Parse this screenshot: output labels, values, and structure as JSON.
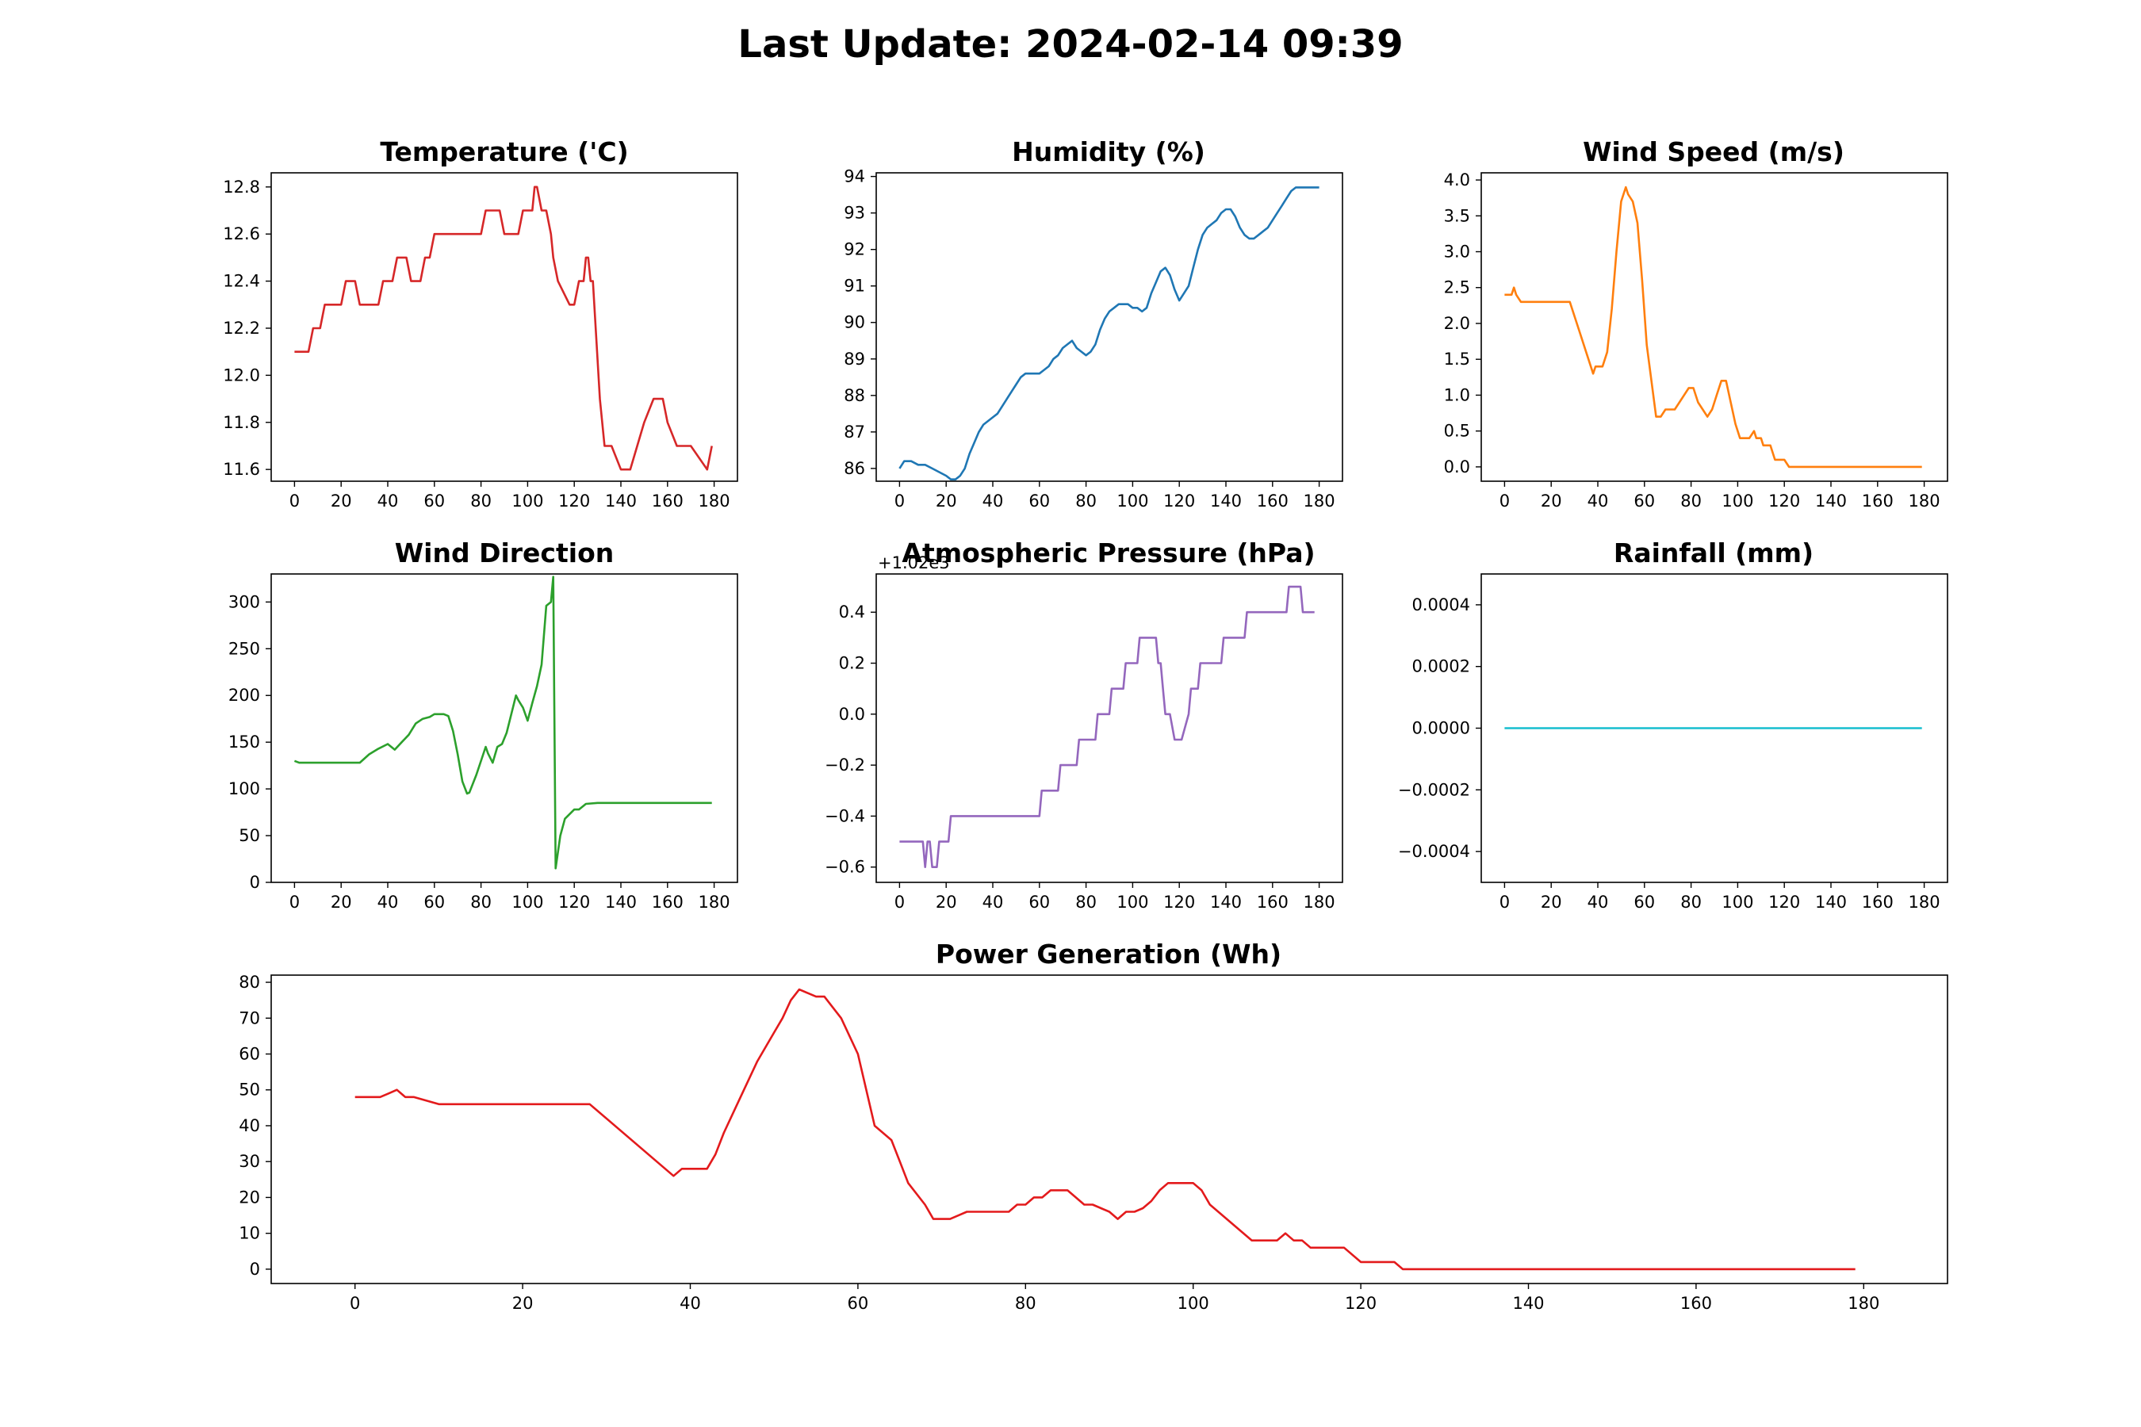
{
  "page": {
    "title": "Last Update: 2024-02-14 09:39"
  },
  "colors": {
    "temperature": "#d62728",
    "humidity": "#1f77b4",
    "wind_speed": "#ff7f0e",
    "wind_direction": "#2ca02c",
    "pressure": "#9467bd",
    "rainfall": "#17becf",
    "power": "#e31a1c",
    "axes": "#000000",
    "background": "#ffffff"
  },
  "chart_data": [
    {
      "id": "temperature",
      "type": "line",
      "title": "Temperature ('C)",
      "xlabel": "",
      "ylabel": "",
      "xlim": [
        -10,
        190
      ],
      "ylim": [
        11.55,
        12.86
      ],
      "xticks": [
        0,
        20,
        40,
        60,
        80,
        100,
        120,
        140,
        160,
        180
      ],
      "yticks": [
        11.6,
        11.8,
        12.0,
        12.2,
        12.4,
        12.6,
        12.8
      ],
      "ytick_labels": [
        "11.6",
        "11.8",
        "12.0",
        "12.2",
        "12.4",
        "12.6",
        "12.8"
      ],
      "grid": false,
      "step": true,
      "series": [
        {
          "x": [
            0,
            6,
            8,
            11,
            13,
            20,
            22,
            26,
            28,
            36,
            38,
            42,
            44,
            48,
            50,
            54,
            56,
            58,
            60,
            80,
            82,
            88,
            90,
            96,
            98,
            102,
            103,
            104,
            106,
            108,
            110,
            111,
            113,
            118,
            120,
            122,
            124,
            125,
            126,
            127,
            128,
            131,
            133,
            136,
            140,
            144,
            147,
            150,
            154,
            158,
            160,
            164,
            170,
            177,
            179
          ],
          "y": [
            12.1,
            12.1,
            12.2,
            12.2,
            12.3,
            12.3,
            12.4,
            12.4,
            12.3,
            12.3,
            12.4,
            12.4,
            12.5,
            12.5,
            12.4,
            12.4,
            12.5,
            12.5,
            12.6,
            12.6,
            12.7,
            12.7,
            12.6,
            12.6,
            12.7,
            12.7,
            12.8,
            12.8,
            12.7,
            12.7,
            12.6,
            12.5,
            12.4,
            12.3,
            12.3,
            12.4,
            12.4,
            12.5,
            12.5,
            12.4,
            12.4,
            11.9,
            11.7,
            11.7,
            11.6,
            11.6,
            11.7,
            11.8,
            11.9,
            11.9,
            11.8,
            11.7,
            11.7,
            11.6,
            11.7
          ]
        }
      ]
    },
    {
      "id": "humidity",
      "type": "line",
      "title": "Humidity (%)",
      "xlabel": "",
      "ylabel": "",
      "xlim": [
        -10,
        190
      ],
      "ylim": [
        85.65,
        94.1
      ],
      "xticks": [
        0,
        20,
        40,
        60,
        80,
        100,
        120,
        140,
        160,
        180
      ],
      "yticks": [
        86,
        87,
        88,
        89,
        90,
        91,
        92,
        93,
        94
      ],
      "ytick_labels": [
        "86",
        "87",
        "88",
        "89",
        "90",
        "91",
        "92",
        "93",
        "94"
      ],
      "grid": false,
      "series": [
        {
          "x": [
            0,
            2,
            5,
            8,
            11,
            14,
            17,
            20,
            22,
            24,
            26,
            28,
            30,
            32,
            34,
            36,
            38,
            40,
            42,
            44,
            46,
            48,
            50,
            52,
            54,
            56,
            58,
            60,
            62,
            64,
            66,
            68,
            70,
            72,
            74,
            76,
            78,
            80,
            82,
            84,
            86,
            88,
            90,
            92,
            94,
            96,
            98,
            100,
            102,
            104,
            106,
            108,
            110,
            112,
            114,
            116,
            118,
            120,
            122,
            124,
            126,
            128,
            130,
            132,
            134,
            136,
            138,
            140,
            142,
            144,
            146,
            148,
            150,
            152,
            154,
            156,
            158,
            160,
            162,
            164,
            166,
            168,
            170,
            172,
            174,
            176,
            178,
            180
          ],
          "y": [
            86.0,
            86.2,
            86.2,
            86.1,
            86.1,
            86.0,
            85.9,
            85.8,
            85.7,
            85.7,
            85.8,
            86.0,
            86.4,
            86.7,
            87.0,
            87.2,
            87.3,
            87.4,
            87.5,
            87.7,
            87.9,
            88.1,
            88.3,
            88.5,
            88.6,
            88.6,
            88.6,
            88.6,
            88.7,
            88.8,
            89.0,
            89.1,
            89.3,
            89.4,
            89.5,
            89.3,
            89.2,
            89.1,
            89.2,
            89.4,
            89.8,
            90.1,
            90.3,
            90.4,
            90.5,
            90.5,
            90.5,
            90.4,
            90.4,
            90.3,
            90.4,
            90.8,
            91.1,
            91.4,
            91.5,
            91.3,
            90.9,
            90.6,
            90.8,
            91.0,
            91.5,
            92.0,
            92.4,
            92.6,
            92.7,
            92.8,
            93.0,
            93.1,
            93.1,
            92.9,
            92.6,
            92.4,
            92.3,
            92.3,
            92.4,
            92.5,
            92.6,
            92.8,
            93.0,
            93.2,
            93.4,
            93.6,
            93.7,
            93.7,
            93.7,
            93.7,
            93.7,
            93.7
          ]
        }
      ]
    },
    {
      "id": "wind_speed",
      "type": "line",
      "title": "Wind Speed (m/s)",
      "xlabel": "",
      "ylabel": "",
      "xlim": [
        -10,
        190
      ],
      "ylim": [
        -0.2,
        4.1
      ],
      "xticks": [
        0,
        20,
        40,
        60,
        80,
        100,
        120,
        140,
        160,
        180
      ],
      "yticks": [
        0.0,
        0.5,
        1.0,
        1.5,
        2.0,
        2.5,
        3.0,
        3.5,
        4.0
      ],
      "ytick_labels": [
        "0.0",
        "0.5",
        "1.0",
        "1.5",
        "2.0",
        "2.5",
        "3.0",
        "3.5",
        "4.0"
      ],
      "grid": false,
      "series": [
        {
          "x": [
            0,
            3,
            4,
            5,
            7,
            10,
            15,
            20,
            28,
            32,
            35,
            38,
            39,
            40,
            42,
            44,
            46,
            48,
            50,
            52,
            53,
            55,
            57,
            59,
            61,
            63,
            65,
            67,
            69,
            71,
            73,
            75,
            77,
            79,
            81,
            83,
            85,
            87,
            89,
            90,
            91,
            93,
            95,
            97,
            99,
            101,
            103,
            105,
            107,
            108,
            110,
            111,
            112,
            114,
            116,
            118,
            120,
            122,
            124,
            125,
            127,
            130,
            140,
            150,
            160,
            170,
            179
          ],
          "y": [
            2.4,
            2.4,
            2.5,
            2.4,
            2.3,
            2.3,
            2.3,
            2.3,
            2.3,
            1.9,
            1.6,
            1.3,
            1.4,
            1.4,
            1.4,
            1.6,
            2.2,
            3.0,
            3.7,
            3.9,
            3.8,
            3.7,
            3.4,
            2.6,
            1.7,
            1.2,
            0.7,
            0.7,
            0.8,
            0.8,
            0.8,
            0.9,
            1.0,
            1.1,
            1.1,
            0.9,
            0.8,
            0.7,
            0.8,
            0.9,
            1.0,
            1.2,
            1.2,
            0.9,
            0.6,
            0.4,
            0.4,
            0.4,
            0.5,
            0.4,
            0.4,
            0.3,
            0.3,
            0.3,
            0.1,
            0.1,
            0.1,
            0.0,
            0.0,
            0.0,
            0.0,
            0.0,
            0.0,
            0.0,
            0.0,
            0.0,
            0.0
          ]
        }
      ]
    },
    {
      "id": "wind_direction",
      "type": "line",
      "title": "Wind Direction",
      "xlabel": "",
      "ylabel": "",
      "xlim": [
        -10,
        190
      ],
      "ylim": [
        0,
        330
      ],
      "xticks": [
        0,
        20,
        40,
        60,
        80,
        100,
        120,
        140,
        160,
        180
      ],
      "yticks": [
        0,
        50,
        100,
        150,
        200,
        250,
        300
      ],
      "ytick_labels": [
        "0",
        "50",
        "100",
        "150",
        "200",
        "250",
        "300"
      ],
      "grid": false,
      "series": [
        {
          "x": [
            0,
            2,
            28,
            32,
            36,
            40,
            43,
            46,
            49,
            52,
            55,
            58,
            60,
            62,
            64,
            66,
            68,
            70,
            72,
            74,
            75,
            78,
            82,
            83,
            85,
            87,
            89,
            91,
            93,
            95,
            96,
            98,
            100,
            102,
            104,
            106,
            108,
            110,
            111,
            112,
            114,
            116,
            120,
            122,
            125,
            130,
            140,
            150,
            160,
            170,
            179
          ],
          "y": [
            130,
            128,
            128,
            137,
            143,
            148,
            142,
            150,
            158,
            170,
            175,
            177,
            180,
            180,
            180,
            178,
            162,
            137,
            108,
            95,
            96,
            115,
            145,
            138,
            128,
            145,
            148,
            160,
            180,
            200,
            195,
            187,
            173,
            192,
            210,
            233,
            296,
            300,
            327,
            15,
            50,
            68,
            78,
            78,
            84,
            85,
            85,
            85,
            85,
            85,
            85
          ]
        }
      ]
    },
    {
      "id": "pressure",
      "type": "line",
      "title": "Atmospheric Pressure (hPa)",
      "offset_label": "+1.02e3",
      "xlabel": "",
      "ylabel": "",
      "xlim": [
        -10,
        190
      ],
      "ylim": [
        -0.66,
        0.55
      ],
      "xticks": [
        0,
        20,
        40,
        60,
        80,
        100,
        120,
        140,
        160,
        180
      ],
      "yticks": [
        -0.6,
        -0.4,
        -0.2,
        0.0,
        0.2,
        0.4
      ],
      "ytick_labels": [
        "−0.6",
        "−0.4",
        "−0.2",
        "0.0",
        "0.2",
        "0.4"
      ],
      "grid": false,
      "series": [
        {
          "x": [
            0,
            10,
            11,
            12,
            13,
            14,
            16,
            17,
            20,
            21,
            22,
            60,
            61,
            68,
            69,
            76,
            77,
            84,
            85,
            90,
            91,
            96,
            97,
            102,
            103,
            110,
            111,
            112,
            113,
            114,
            116,
            118,
            120,
            121,
            124,
            125,
            128,
            129,
            130,
            131,
            138,
            139,
            148,
            149,
            166,
            167,
            172,
            173,
            178
          ],
          "y": [
            -0.5,
            -0.5,
            -0.6,
            -0.5,
            -0.5,
            -0.6,
            -0.6,
            -0.5,
            -0.5,
            -0.5,
            -0.4,
            -0.4,
            -0.3,
            -0.3,
            -0.2,
            -0.2,
            -0.1,
            -0.1,
            0.0,
            0.0,
            0.1,
            0.1,
            0.2,
            0.2,
            0.3,
            0.3,
            0.2,
            0.2,
            0.1,
            0.0,
            -0.0,
            -0.1,
            -0.1,
            -0.1,
            0.0,
            0.1,
            0.1,
            0.2,
            0.2,
            0.2,
            0.2,
            0.3,
            0.3,
            0.4,
            0.4,
            0.5,
            0.5,
            0.4,
            0.4
          ]
        }
      ]
    },
    {
      "id": "rainfall",
      "type": "line",
      "title": "Rainfall (mm)",
      "xlabel": "",
      "ylabel": "",
      "xlim": [
        -10,
        190
      ],
      "ylim": [
        -0.0005,
        0.0005
      ],
      "xticks": [
        0,
        20,
        40,
        60,
        80,
        100,
        120,
        140,
        160,
        180
      ],
      "yticks": [
        -0.0004,
        -0.0002,
        0.0,
        0.0002,
        0.0004
      ],
      "ytick_labels": [
        "−0.0004",
        "−0.0002",
        "0.0000",
        "0.0002",
        "0.0004"
      ],
      "grid": false,
      "series": [
        {
          "x": [
            0,
            179
          ],
          "y": [
            0,
            0
          ]
        }
      ]
    },
    {
      "id": "power",
      "type": "line",
      "title": "Power Generation (Wh)",
      "xlabel": "",
      "ylabel": "",
      "xlim": [
        -10,
        190
      ],
      "ylim": [
        -4,
        82
      ],
      "xticks": [
        0,
        20,
        40,
        60,
        80,
        100,
        120,
        140,
        160,
        180
      ],
      "yticks": [
        0,
        10,
        20,
        30,
        40,
        50,
        60,
        70,
        80
      ],
      "ytick_labels": [
        "0",
        "10",
        "20",
        "30",
        "40",
        "50",
        "60",
        "70",
        "80"
      ],
      "grid": false,
      "series": [
        {
          "x": [
            0,
            3,
            4,
            5,
            6,
            7,
            10,
            20,
            28,
            38,
            39,
            40,
            42,
            43,
            44,
            46,
            48,
            50,
            51,
            52,
            53,
            54,
            55,
            56,
            58,
            60,
            62,
            64,
            65,
            66,
            68,
            69,
            70,
            71,
            72,
            73,
            74,
            75,
            76,
            78,
            79,
            80,
            81,
            82,
            83,
            84,
            85,
            86,
            87,
            88,
            89,
            90,
            91,
            92,
            93,
            94,
            95,
            96,
            97,
            98,
            99,
            100,
            101,
            102,
            104,
            107,
            109,
            110,
            111,
            112,
            113,
            114,
            118,
            120,
            124,
            125,
            130,
            140,
            150,
            160,
            170,
            179
          ],
          "y": [
            48,
            48,
            49,
            50,
            48,
            48,
            46,
            46,
            46,
            26,
            28,
            28,
            28,
            32,
            38,
            48,
            58,
            66,
            70,
            75,
            78,
            77,
            76,
            76,
            70,
            60,
            40,
            36,
            30,
            24,
            18,
            14,
            14,
            14,
            15,
            16,
            16,
            16,
            16,
            16,
            18,
            18,
            20,
            20,
            22,
            22,
            22,
            20,
            18,
            18,
            17,
            16,
            14,
            16,
            16,
            17,
            19,
            22,
            24,
            24,
            24,
            24,
            22,
            18,
            14,
            8,
            8,
            8,
            10,
            8,
            8,
            6,
            6,
            2,
            2,
            0,
            0,
            0,
            0,
            0,
            0,
            0
          ]
        }
      ]
    }
  ]
}
